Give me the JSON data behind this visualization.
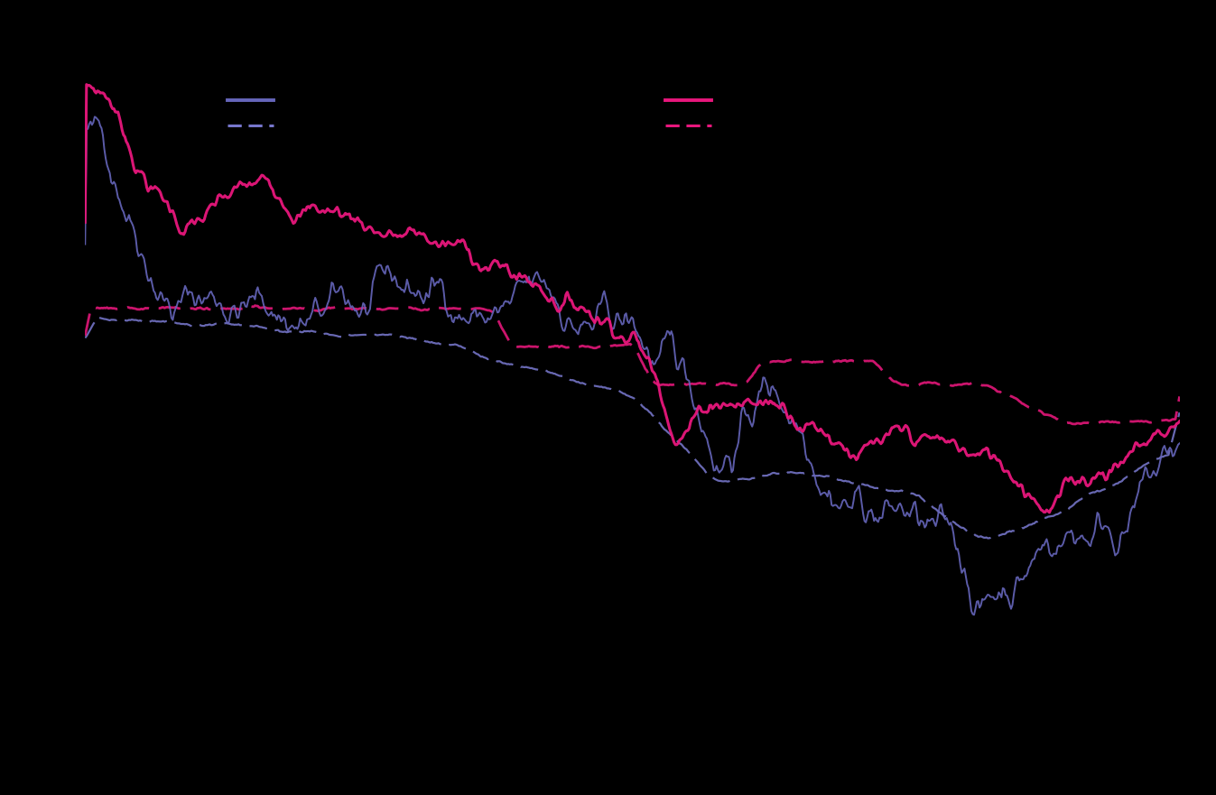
{
  "background_color": "#000000",
  "line_blue_solid_color": "#6666bb",
  "line_blue_dashed_color": "#7777cc",
  "line_pink_solid_color": "#e8177c",
  "line_pink_dashed_color": "#e8177c",
  "lw_blue_solid": 1.4,
  "lw_blue_dashed": 1.6,
  "lw_pink_solid": 2.2,
  "lw_pink_dashed": 2.0,
  "n_points": 800
}
